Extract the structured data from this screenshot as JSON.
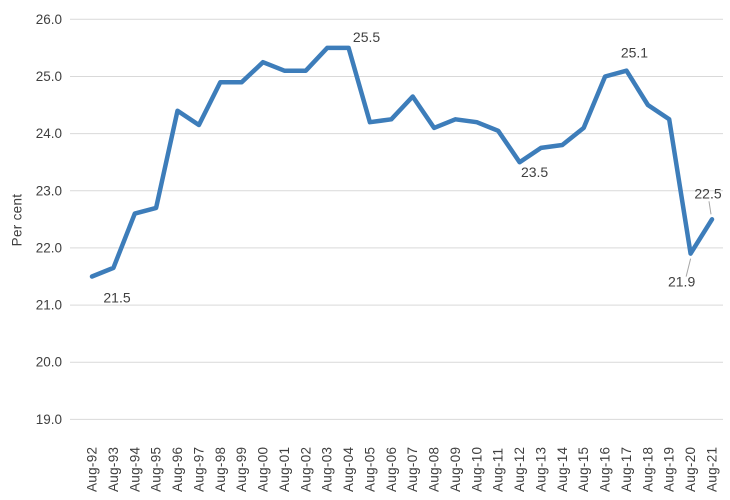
{
  "chart_data": {
    "type": "line",
    "title": "",
    "ylabel": "Per cent",
    "xlabel": "",
    "x": [
      "Aug-92",
      "Aug-93",
      "Aug-94",
      "Aug-95",
      "Aug-96",
      "Aug-97",
      "Aug-98",
      "Aug-99",
      "Aug-00",
      "Aug-01",
      "Aug-02",
      "Aug-03",
      "Aug-04",
      "Aug-05",
      "Aug-06",
      "Aug-07",
      "Aug-08",
      "Aug-09",
      "Aug-10",
      "Aug-11",
      "Aug-12",
      "Aug-13",
      "Aug-14",
      "Aug-15",
      "Aug-16",
      "Aug-17",
      "Aug-18",
      "Aug-19",
      "Aug-20",
      "Aug-21"
    ],
    "values": [
      21.5,
      21.65,
      22.6,
      22.7,
      24.4,
      24.15,
      24.9,
      24.9,
      25.25,
      25.1,
      25.1,
      25.5,
      25.5,
      24.2,
      24.25,
      24.65,
      24.1,
      24.25,
      24.2,
      24.05,
      23.5,
      23.75,
      23.8,
      24.1,
      25.0,
      25.1,
      24.5,
      24.25,
      21.9,
      22.5
    ],
    "ylim": [
      19.0,
      26.0
    ],
    "yticks": [
      "26.0",
      "25.0",
      "24.0",
      "23.0",
      "22.0",
      "21.0",
      "20.0",
      "19.0"
    ],
    "grid": "horizontal",
    "legend_position": "none",
    "annotations": [
      {
        "x": "Aug-92",
        "label": "21.5"
      },
      {
        "x": "Aug-04",
        "label": "25.5"
      },
      {
        "x": "Aug-12",
        "label": "23.5"
      },
      {
        "x": "Aug-17",
        "label": "25.1"
      },
      {
        "x": "Aug-20",
        "label": "21.9"
      },
      {
        "x": "Aug-21",
        "label": "22.5"
      }
    ],
    "colors": {
      "series_line": "#3d7dba",
      "gridline": "#d9d9d9",
      "text": "#404040",
      "leader_line": "#a6a6a6"
    }
  }
}
